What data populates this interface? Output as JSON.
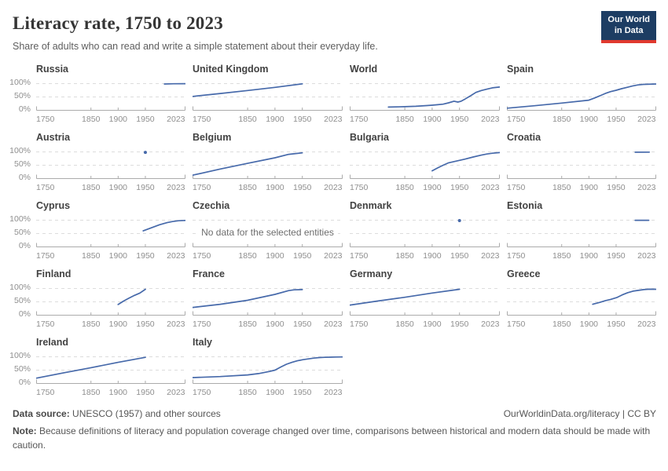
{
  "header": {
    "title": "Literacy rate, 1750 to 2023",
    "subtitle": "Share of adults who can read and write a simple statement about their everyday life.",
    "logo_line1": "Our World",
    "logo_line2": "in Data"
  },
  "footer": {
    "source_label": "Data source:",
    "source_text": " UNESCO (1957) and other sources",
    "credit": "OurWorldinData.org/literacy | CC BY",
    "note_label": "Note:",
    "note_text": " Because definitions of literacy and population coverage changed over time, comparisons between historical and modern data should be made with caution."
  },
  "colors": {
    "line": "#4669aa",
    "grid": "#dcdcdc",
    "axis": "#ababab",
    "tick_label": "#8f8f8f",
    "logo_bg": "#1d3d63",
    "logo_accent": "#e0392e"
  },
  "chart_data": {
    "type": "line",
    "title": "Literacy rate, 1750 to 2023",
    "subtitle": "Share of adults who can read and write a simple statement about their everyday life.",
    "x_range": [
      1750,
      2023
    ],
    "y_range": [
      0,
      100
    ],
    "x_tick_labels": [
      "1750",
      "1850",
      "1900",
      "1950",
      "2023"
    ],
    "x_tick_years": [
      1750,
      1850,
      1900,
      1950,
      2023
    ],
    "y_tick_labels": [
      "0%",
      "50%",
      "100%"
    ],
    "grid": "dashed-horizontal",
    "legend": "none",
    "no_data_text": "No data for the selected entities",
    "panels": [
      {
        "name": "Russia",
        "series": [
          [
            1985,
            98.6
          ],
          [
            2002,
            99.4
          ],
          [
            2023,
            99.8
          ]
        ]
      },
      {
        "name": "United Kingdom",
        "series": [
          [
            1750,
            52
          ],
          [
            1800,
            63
          ],
          [
            1850,
            74
          ],
          [
            1900,
            86
          ],
          [
            1950,
            99
          ]
        ]
      },
      {
        "name": "World",
        "series": [
          [
            1820,
            12
          ],
          [
            1850,
            13.5
          ],
          [
            1870,
            15
          ],
          [
            1890,
            17.5
          ],
          [
            1900,
            19
          ],
          [
            1910,
            21
          ],
          [
            1920,
            23
          ],
          [
            1930,
            28
          ],
          [
            1940,
            34
          ],
          [
            1947,
            31
          ],
          [
            1953,
            34
          ],
          [
            1960,
            42
          ],
          [
            1970,
            54
          ],
          [
            1980,
            67
          ],
          [
            1990,
            74
          ],
          [
            2000,
            79
          ],
          [
            2010,
            84
          ],
          [
            2023,
            87
          ]
        ]
      },
      {
        "name": "Spain",
        "series": [
          [
            1750,
            8
          ],
          [
            1800,
            17
          ],
          [
            1850,
            27
          ],
          [
            1900,
            38
          ],
          [
            1910,
            46
          ],
          [
            1920,
            54
          ],
          [
            1930,
            63
          ],
          [
            1940,
            70
          ],
          [
            1950,
            75
          ],
          [
            1960,
            81
          ],
          [
            1970,
            86
          ],
          [
            1980,
            91
          ],
          [
            1990,
            95
          ],
          [
            2000,
            97
          ],
          [
            2023,
            98.5
          ]
        ]
      },
      {
        "name": "Austria",
        "point": [
          1950,
          98
        ]
      },
      {
        "name": "Belgium",
        "series": [
          [
            1750,
            13
          ],
          [
            1800,
            36
          ],
          [
            1850,
            57
          ],
          [
            1900,
            78
          ],
          [
            1925,
            91
          ],
          [
            1950,
            96.5
          ]
        ]
      },
      {
        "name": "Bulgaria",
        "series": [
          [
            1900,
            29
          ],
          [
            1910,
            40
          ],
          [
            1920,
            50
          ],
          [
            1930,
            59
          ],
          [
            1945,
            66
          ],
          [
            1960,
            73
          ],
          [
            1975,
            81
          ],
          [
            1990,
            88
          ],
          [
            2000,
            92
          ],
          [
            2010,
            95
          ],
          [
            2023,
            97.5
          ]
        ]
      },
      {
        "name": "Croatia",
        "series": [
          [
            1985,
            98.8
          ],
          [
            2011,
            99.2
          ]
        ]
      },
      {
        "name": "Cyprus",
        "series": [
          [
            1946,
            60
          ],
          [
            1960,
            71
          ],
          [
            1976,
            83
          ],
          [
            1990,
            91
          ],
          [
            2000,
            95
          ],
          [
            2011,
            98
          ],
          [
            2023,
            99
          ]
        ]
      },
      {
        "name": "Czechia",
        "no_data": true
      },
      {
        "name": "Denmark",
        "point": [
          1950,
          98.5
        ]
      },
      {
        "name": "Estonia",
        "series": [
          [
            1985,
            99.7
          ],
          [
            2010,
            99.8
          ]
        ]
      },
      {
        "name": "Finland",
        "series": [
          [
            1900,
            40
          ],
          [
            1910,
            53
          ],
          [
            1920,
            64
          ],
          [
            1930,
            74
          ],
          [
            1940,
            83
          ],
          [
            1950,
            97
          ]
        ]
      },
      {
        "name": "France",
        "series": [
          [
            1750,
            29
          ],
          [
            1800,
            41
          ],
          [
            1850,
            56
          ],
          [
            1900,
            78
          ],
          [
            1925,
            92
          ],
          [
            1935,
            95
          ],
          [
            1950,
            96
          ]
        ]
      },
      {
        "name": "Germany",
        "series": [
          [
            1750,
            38
          ],
          [
            1800,
            53
          ],
          [
            1850,
            67
          ],
          [
            1900,
            83
          ],
          [
            1950,
            97
          ]
        ]
      },
      {
        "name": "Greece",
        "series": [
          [
            1907,
            41
          ],
          [
            1920,
            48
          ],
          [
            1930,
            54
          ],
          [
            1940,
            59
          ],
          [
            1951,
            66
          ],
          [
            1961,
            76
          ],
          [
            1971,
            84
          ],
          [
            1981,
            90
          ],
          [
            1991,
            93
          ],
          [
            2001,
            96
          ],
          [
            2011,
            97.5
          ],
          [
            2023,
            97
          ]
        ]
      },
      {
        "name": "Ireland",
        "series": [
          [
            1750,
            20
          ],
          [
            1800,
            40
          ],
          [
            1850,
            59
          ],
          [
            1900,
            79
          ],
          [
            1950,
            98
          ]
        ]
      },
      {
        "name": "Italy",
        "series": [
          [
            1750,
            22
          ],
          [
            1800,
            26
          ],
          [
            1850,
            32
          ],
          [
            1870,
            37
          ],
          [
            1880,
            41
          ],
          [
            1890,
            45
          ],
          [
            1900,
            50
          ],
          [
            1911,
            62
          ],
          [
            1921,
            72
          ],
          [
            1931,
            79
          ],
          [
            1941,
            85
          ],
          [
            1951,
            89
          ],
          [
            1961,
            92
          ],
          [
            1971,
            95
          ],
          [
            1981,
            97
          ],
          [
            1991,
            98
          ],
          [
            2001,
            98.6
          ],
          [
            2011,
            99
          ],
          [
            2023,
            99.5
          ]
        ]
      }
    ]
  }
}
